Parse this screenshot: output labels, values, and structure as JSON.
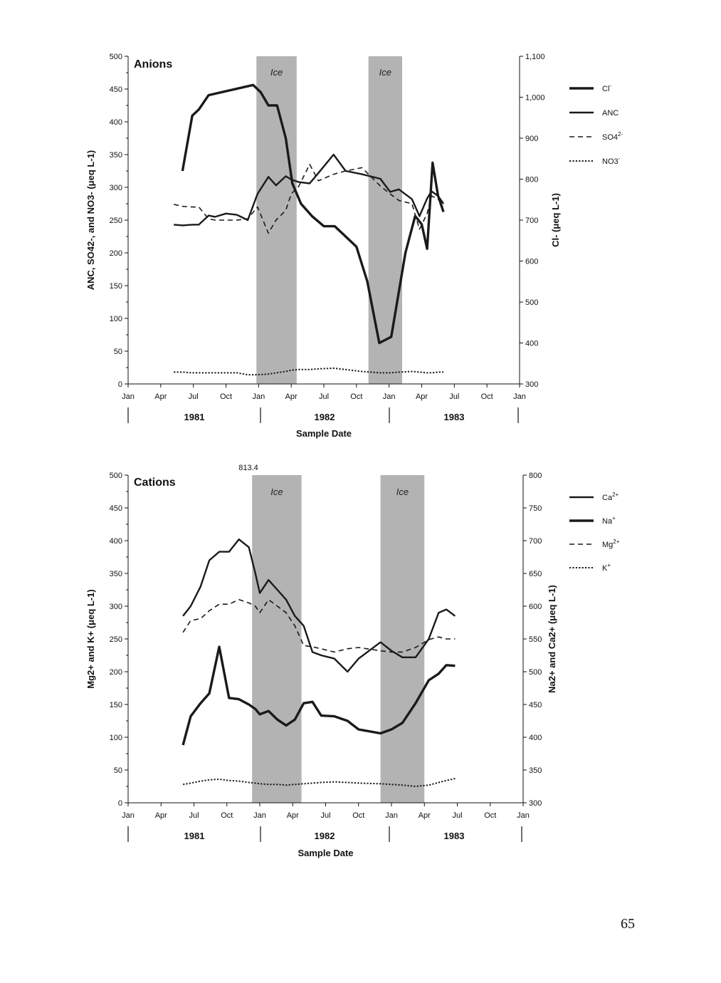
{
  "page_number": "65",
  "colors": {
    "line": "#1a1a1a",
    "ice_band": "#b3b3b3"
  },
  "chart_data": [
    {
      "type": "line",
      "title": "Anions",
      "xlabel": "Sample Date",
      "ylabel_left": "ANC, SO42-, and NO3- (μeq L-1)",
      "ylabel_right": "Cl- (μeq L-1)",
      "ylim_left": [
        0,
        500
      ],
      "ylim_right": [
        300,
        1100
      ],
      "x_tick_labels": [
        "Jan",
        "Apr",
        "Jul",
        "Oct",
        "Jan",
        "Apr",
        "Jul",
        "Oct",
        "Jan",
        "Apr",
        "Jul",
        "Oct",
        "Jan"
      ],
      "year_labels": [
        "1981",
        "1982",
        "1983"
      ],
      "y_left_ticks": [
        "0",
        "50",
        "100",
        "150",
        "200",
        "250",
        "300",
        "350",
        "400",
        "450",
        "500"
      ],
      "y_right_ticks": [
        "300",
        "400",
        "500",
        "600",
        "700",
        "800",
        "900",
        "1,000",
        "1,100"
      ],
      "ice_label": "Ice",
      "ice_periods": [
        [
          11.8,
          15.5
        ],
        [
          22.1,
          25.2
        ]
      ],
      "grid": false,
      "legend_position": "right",
      "series": [
        {
          "name": "Cl",
          "superscript": "-",
          "axis": "right",
          "style": "thick",
          "x": [
            5.0,
            5.9,
            6.5,
            7.4,
            11.5,
            12.2,
            12.9,
            13.7,
            14.5,
            15.1,
            15.9,
            16.9,
            18.0,
            19.0,
            20.0,
            21.0,
            22.0,
            23.1,
            24.2,
            25.5,
            26.4,
            27.0,
            27.5,
            28.0,
            28.5,
            29.0
          ],
          "values": [
            820,
            955,
            970,
            1005,
            1030,
            1012,
            980,
            980,
            900,
            790,
            740,
            710,
            685,
            685,
            660,
            635,
            550,
            400,
            415,
            620,
            710,
            690,
            630,
            840,
            760,
            720
          ]
        },
        {
          "name": "ANC",
          "superscript": "",
          "axis": "left",
          "style": "solid",
          "x": [
            4.2,
            5.0,
            5.9,
            6.5,
            7.4,
            8.0,
            9.0,
            10.0,
            11.0,
            11.9,
            12.9,
            13.6,
            14.5,
            15.0,
            15.7,
            16.7,
            17.5,
            18.9,
            20.0,
            21.5,
            23.2,
            24.1,
            24.9,
            26.1,
            26.8,
            27.5,
            27.9,
            28.5,
            29.0
          ],
          "values": [
            243,
            242,
            243,
            243,
            257,
            255,
            260,
            258,
            250,
            290,
            316,
            303,
            317,
            312,
            308,
            306,
            322,
            350,
            325,
            320,
            313,
            293,
            297,
            282,
            256,
            283,
            294,
            287,
            275
          ]
        },
        {
          "name": "SO4",
          "superscript": "2-",
          "axis": "left",
          "style": "dashed",
          "x": [
            4.2,
            5.0,
            5.9,
            6.5,
            7.4,
            8.0,
            9.0,
            10.0,
            11.0,
            11.9,
            12.9,
            13.6,
            14.5,
            15.0,
            15.7,
            16.7,
            17.5,
            18.9,
            20.0,
            21.5,
            23.2,
            24.1,
            24.9,
            26.1,
            26.8,
            27.5,
            27.9,
            28.5,
            29.0
          ],
          "values": [
            274,
            271,
            270,
            270,
            252,
            250,
            250,
            250,
            252,
            270,
            230,
            250,
            265,
            290,
            302,
            335,
            310,
            320,
            325,
            330,
            302,
            290,
            280,
            275,
            236,
            260,
            287,
            282,
            272
          ]
        },
        {
          "name": "NO3",
          "superscript": "-",
          "axis": "left",
          "style": "dotted",
          "x": [
            4.2,
            5.0,
            5.9,
            6.5,
            7.4,
            8.0,
            9.0,
            10.0,
            11.0,
            11.9,
            12.9,
            13.6,
            14.5,
            15.0,
            15.7,
            16.7,
            17.5,
            18.9,
            20.0,
            21.5,
            23.2,
            24.1,
            24.9,
            26.1,
            26.8,
            27.5,
            27.9,
            28.5,
            29.0
          ],
          "values": [
            18,
            18,
            17,
            17,
            17,
            17,
            17,
            17,
            14,
            14,
            15,
            17,
            19,
            21,
            22,
            22,
            23,
            24,
            22,
            19,
            17,
            17,
            18,
            19,
            18,
            17,
            17,
            18,
            18
          ]
        }
      ]
    },
    {
      "type": "line",
      "title": "Cations",
      "xlabel": "Sample Date",
      "ylabel_left": "Mg2+ and K+ (μeq L-1)",
      "ylabel_right": "Na2+ and Ca2+ (μeq L-1)",
      "ylim_left": [
        0,
        500
      ],
      "ylim_right": [
        300,
        800
      ],
      "x_tick_labels": [
        "Jan",
        "Apr",
        "Jul",
        "Oct",
        "Jan",
        "Apr",
        "Jul",
        "Oct",
        "Jan",
        "Apr",
        "Jul",
        "Oct",
        "Jan"
      ],
      "year_labels": [
        "1981",
        "1982",
        "1983"
      ],
      "y_left_ticks": [
        "0",
        "50",
        "100",
        "150",
        "200",
        "250",
        "300",
        "350",
        "400",
        "450",
        "500"
      ],
      "y_right_ticks": [
        "300",
        "350",
        "400",
        "450",
        "500",
        "550",
        "600",
        "650",
        "700",
        "750",
        "800"
      ],
      "ice_label": "Ice",
      "ice_periods": [
        [
          11.3,
          15.8
        ],
        [
          23.0,
          27.0
        ]
      ],
      "annotation": "813.4",
      "grid": false,
      "legend_position": "right",
      "series": [
        {
          "name": "Ca",
          "superscript": "2+",
          "axis": "right",
          "style": "solid",
          "x": [
            5.0,
            5.7,
            6.6,
            7.4,
            8.3,
            9.2,
            10.1,
            11.0,
            11.6,
            12.0,
            12.8,
            13.6,
            14.4,
            15.2,
            16.0,
            16.8,
            17.6,
            18.8,
            20.0,
            21.0,
            23.0,
            24.0,
            25.0,
            26.2,
            27.4,
            28.3,
            29.0,
            29.8
          ],
          "values": [
            585,
            600,
            630,
            670,
            683,
            683,
            702,
            690,
            650,
            620,
            640,
            625,
            610,
            585,
            570,
            530,
            525,
            520,
            500,
            520,
            545,
            532,
            522,
            522,
            550,
            590,
            595,
            585
          ]
        },
        {
          "name": "Na",
          "superscript": "+",
          "axis": "right",
          "style": "thick",
          "x": [
            5.0,
            5.7,
            6.6,
            7.4,
            8.3,
            9.2,
            10.1,
            11.0,
            11.6,
            12.0,
            12.8,
            13.6,
            14.4,
            15.2,
            16.0,
            16.8,
            17.6,
            18.8,
            20.0,
            21.0,
            23.0,
            24.0,
            25.0,
            26.2,
            27.4,
            28.3,
            29.0,
            29.8
          ],
          "values": [
            388,
            432,
            452,
            467,
            538,
            460,
            458,
            450,
            443,
            435,
            440,
            427,
            418,
            427,
            452,
            454,
            433,
            432,
            425,
            412,
            406,
            412,
            422,
            452,
            487,
            497,
            510,
            509
          ]
        },
        {
          "name": "Mg",
          "superscript": "2+",
          "axis": "left",
          "style": "dashed",
          "x": [
            5.0,
            5.7,
            6.6,
            7.4,
            8.3,
            9.2,
            10.1,
            11.0,
            11.6,
            12.0,
            12.8,
            13.6,
            14.4,
            15.2,
            16.0,
            16.8,
            17.6,
            18.8,
            20.0,
            21.0,
            23.0,
            24.0,
            25.0,
            26.2,
            27.4,
            28.3,
            29.0,
            29.8
          ],
          "values": [
            260,
            278,
            281,
            293,
            303,
            303,
            310,
            305,
            300,
            290,
            310,
            300,
            290,
            270,
            240,
            238,
            235,
            230,
            235,
            237,
            232,
            230,
            230,
            237,
            249,
            253,
            250,
            250
          ]
        },
        {
          "name": "K",
          "superscript": "+",
          "axis": "left",
          "style": "dotted",
          "x": [
            5.0,
            5.7,
            6.6,
            7.4,
            8.3,
            9.2,
            10.1,
            11.0,
            11.6,
            12.0,
            12.8,
            13.6,
            14.4,
            15.2,
            16.0,
            16.8,
            17.6,
            18.8,
            20.0,
            21.0,
            23.0,
            24.0,
            25.0,
            26.2,
            27.4,
            28.3,
            29.0,
            29.8
          ],
          "values": [
            28,
            30,
            33,
            35,
            36,
            34,
            33,
            31,
            30,
            29,
            28,
            28,
            27,
            28,
            29,
            30,
            31,
            32,
            31,
            30,
            29,
            28,
            27,
            25,
            27,
            31,
            34,
            37
          ]
        }
      ]
    }
  ]
}
